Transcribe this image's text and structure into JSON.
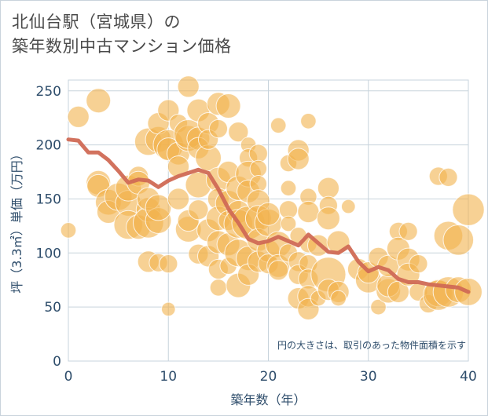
{
  "title": {
    "line1": "北仙台駅（宮城県）の",
    "line2": "築年数別中古マンション価格"
  },
  "colors": {
    "bubble": "#f2b24c",
    "trend": "#d06a55",
    "grid": "#c7d3dc",
    "text": "#2e4d6b"
  },
  "chart_data": {
    "type": "scatter",
    "xlabel": "築年数（年）",
    "ylabel": "坪（3.3㎡）単価（万円）",
    "xlim": [
      0,
      40
    ],
    "ylim": [
      0,
      260
    ],
    "x_ticks": [
      0,
      10,
      20,
      30,
      40
    ],
    "y_ticks": [
      0,
      50,
      100,
      150,
      200,
      250
    ],
    "annotation": "円の大きさは、取引のあった物件面積を示す",
    "grid": true,
    "series": [
      {
        "kind": "bubble",
        "points": [
          [
            0,
            121,
            0.25
          ],
          [
            1,
            226,
            0.45
          ],
          [
            3,
            241,
            0.55
          ],
          [
            3,
            165,
            0.55
          ],
          [
            3,
            162,
            0.5
          ],
          [
            4,
            147,
            0.6
          ],
          [
            4,
            138,
            0.5
          ],
          [
            5,
            152,
            0.65
          ],
          [
            6,
            146,
            0.6
          ],
          [
            6,
            160,
            0.6
          ],
          [
            6,
            126,
            0.7
          ],
          [
            7,
            124,
            0.55
          ],
          [
            7,
            171,
            0.4
          ],
          [
            7,
            165,
            0.5
          ],
          [
            8,
            140,
            0.55
          ],
          [
            8,
            128,
            0.75
          ],
          [
            8,
            150,
            0.5
          ],
          [
            8,
            203,
            0.65
          ],
          [
            8,
            92,
            0.45
          ],
          [
            9,
            130,
            0.6
          ],
          [
            9,
            142,
            0.6
          ],
          [
            9,
            205,
            0.6
          ],
          [
            9,
            220,
            0.45
          ],
          [
            9,
            91,
            0.35
          ],
          [
            10,
            232,
            0.45
          ],
          [
            10,
            200,
            0.75
          ],
          [
            10,
            196,
            0.5
          ],
          [
            10,
            90,
            0.35
          ],
          [
            10,
            48,
            0.2
          ],
          [
            11,
            220,
            0.35
          ],
          [
            11,
            192,
            0.5
          ],
          [
            11,
            150,
            0.45
          ],
          [
            11,
            180,
            0.45
          ],
          [
            12,
            254,
            0.45
          ],
          [
            12,
            206,
            0.6
          ],
          [
            12,
            210,
            0.7
          ],
          [
            12,
            122,
            0.6
          ],
          [
            12,
            130,
            0.45
          ],
          [
            13,
            232,
            0.5
          ],
          [
            13,
            206,
            0.5
          ],
          [
            13,
            197,
            0.45
          ],
          [
            13,
            163,
            0.6
          ],
          [
            13,
            140,
            0.4
          ],
          [
            13,
            99,
            0.4
          ],
          [
            14,
            220,
            0.45
          ],
          [
            14,
            188,
            0.6
          ],
          [
            14,
            205,
            0.4
          ],
          [
            14,
            121,
            0.5
          ],
          [
            14,
            97,
            0.45
          ],
          [
            15,
            238,
            0.5
          ],
          [
            15,
            168,
            0.55
          ],
          [
            15,
            215,
            0.35
          ],
          [
            15,
            150,
            0.45
          ],
          [
            15,
            132,
            0.55
          ],
          [
            15,
            110,
            0.5
          ],
          [
            15,
            85,
            0.4
          ],
          [
            15,
            68,
            0.3
          ],
          [
            16,
            236,
            0.55
          ],
          [
            16,
            175,
            0.45
          ],
          [
            16,
            146,
            0.6
          ],
          [
            16,
            108,
            0.5
          ],
          [
            16,
            130,
            0.4
          ],
          [
            16,
            88,
            0.3
          ],
          [
            17,
            212,
            0.4
          ],
          [
            17,
            160,
            0.55
          ],
          [
            17,
            138,
            0.5
          ],
          [
            17,
            127,
            0.7
          ],
          [
            17,
            100,
            0.65
          ],
          [
            17,
            70,
            0.55
          ],
          [
            18,
            200,
            0.25
          ],
          [
            18,
            188,
            0.35
          ],
          [
            18,
            173,
            0.6
          ],
          [
            18,
            157,
            0.5
          ],
          [
            18,
            128,
            0.85
          ],
          [
            18,
            95,
            0.55
          ],
          [
            18,
            80,
            0.45
          ],
          [
            19,
            192,
            0.35
          ],
          [
            19,
            178,
            0.3
          ],
          [
            19,
            164,
            0.3
          ],
          [
            19,
            148,
            0.5
          ],
          [
            19,
            132,
            0.6
          ],
          [
            19,
            112,
            0.5
          ],
          [
            19,
            92,
            0.45
          ],
          [
            20,
            128,
            0.65
          ],
          [
            20,
            136,
            0.5
          ],
          [
            20,
            102,
            0.5
          ],
          [
            20,
            90,
            0.4
          ],
          [
            21,
            108,
            0.6
          ],
          [
            21,
            88,
            0.5
          ],
          [
            21,
            84,
            0.4
          ],
          [
            21,
            218,
            0.25
          ],
          [
            22,
            183,
            0.3
          ],
          [
            22,
            160,
            0.25
          ],
          [
            22,
            140,
            0.35
          ],
          [
            22,
            127,
            0.25
          ],
          [
            22,
            100,
            0.35
          ],
          [
            23,
            195,
            0.45
          ],
          [
            23,
            187,
            0.45
          ],
          [
            23,
            116,
            0.3
          ],
          [
            23,
            92,
            0.4
          ],
          [
            23,
            80,
            0.4
          ],
          [
            23,
            58,
            0.45
          ],
          [
            24,
            222,
            0.25
          ],
          [
            24,
            152,
            0.3
          ],
          [
            24,
            138,
            0.45
          ],
          [
            24,
            108,
            0.3
          ],
          [
            24,
            90,
            0.35
          ],
          [
            24,
            76,
            0.4
          ],
          [
            24,
            60,
            0.45
          ],
          [
            24,
            48,
            0.45
          ],
          [
            25,
            107,
            0.45
          ],
          [
            25,
            58,
            0.25
          ],
          [
            26,
            160,
            0.45
          ],
          [
            26,
            144,
            0.35
          ],
          [
            26,
            132,
            0.5
          ],
          [
            26,
            80,
            0.9
          ],
          [
            26,
            66,
            0.45
          ],
          [
            27,
            110,
            0.5
          ],
          [
            27,
            64,
            0.45
          ],
          [
            27,
            58,
            0.25
          ],
          [
            28,
            143,
            0.2
          ],
          [
            29,
            85,
            0.45
          ],
          [
            30,
            75,
            0.6
          ],
          [
            30,
            82,
            0.45
          ],
          [
            31,
            96,
            0.4
          ],
          [
            31,
            50,
            0.25
          ],
          [
            32,
            65,
            0.55
          ],
          [
            32,
            70,
            0.5
          ],
          [
            32,
            88,
            0.45
          ],
          [
            33,
            120,
            0.35
          ],
          [
            33,
            104,
            0.5
          ],
          [
            33,
            64,
            0.45
          ],
          [
            34,
            120,
            0.35
          ],
          [
            34,
            94,
            0.5
          ],
          [
            34,
            80,
            0.5
          ],
          [
            35,
            90,
            0.35
          ],
          [
            35,
            64,
            0.35
          ],
          [
            36,
            53,
            0.35
          ],
          [
            37,
            171,
            0.35
          ],
          [
            37,
            63,
            0.65
          ],
          [
            37,
            61,
            0.75
          ],
          [
            38,
            170,
            0.35
          ],
          [
            38,
            116,
            0.7
          ],
          [
            38,
            64,
            0.75
          ],
          [
            39,
            112,
            0.75
          ],
          [
            39,
            66,
            0.6
          ],
          [
            40,
            140,
            0.8
          ],
          [
            40,
            64,
            0.65
          ]
        ]
      },
      {
        "kind": "trend",
        "x": [
          0,
          1,
          2,
          3,
          4,
          5,
          6,
          7,
          8,
          9,
          10,
          11,
          12,
          13,
          14,
          15,
          16,
          17,
          18,
          19,
          20,
          21,
          22,
          23,
          24,
          25,
          26,
          27,
          28,
          29,
          30,
          31,
          32,
          33,
          34,
          35,
          36,
          37,
          38,
          39,
          40
        ],
        "y": [
          205,
          204,
          193,
          193,
          186,
          176,
          165,
          168,
          167,
          161,
          167,
          171,
          174,
          177,
          174,
          159,
          141,
          128,
          113,
          109,
          111,
          115,
          111,
          107,
          117,
          109,
          101,
          100,
          106,
          92,
          83,
          87,
          84,
          76,
          73,
          73,
          71,
          70,
          69,
          68,
          64
        ]
      }
    ]
  }
}
